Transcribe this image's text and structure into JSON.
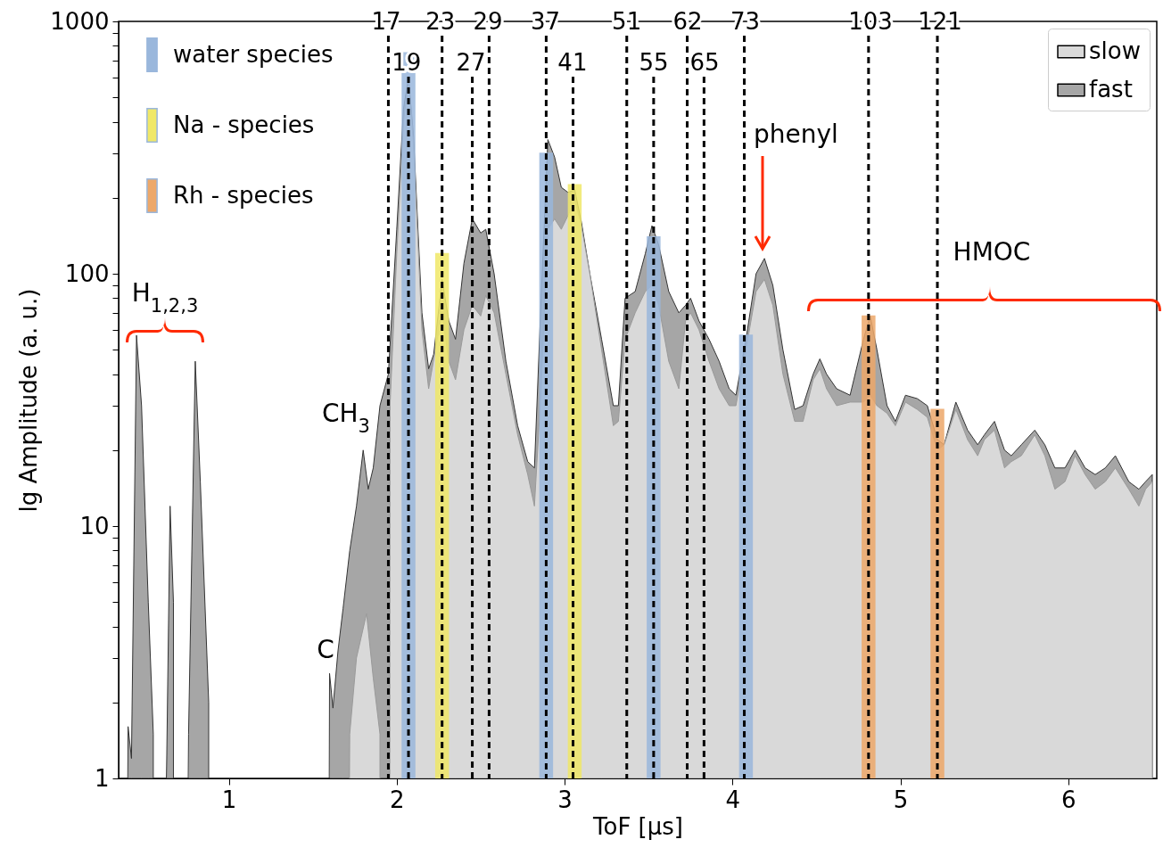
{
  "chart_data": {
    "type": "area",
    "xlabel": "ToF [μs]",
    "ylabel": "lg Amplitude  (a. u.)",
    "xlim": [
      0.37,
      6.5
    ],
    "xticks": [
      1,
      2,
      3,
      4,
      5,
      6
    ],
    "ylim": [
      1,
      1000
    ],
    "log": "y",
    "legend": "top right",
    "yticks": [
      1,
      {
        "value": 2,
        "label": null
      },
      {
        "value": 3,
        "label": null
      },
      {
        "value": 4,
        "label": null
      },
      {
        "value": 5,
        "label": null
      },
      {
        "value": 6,
        "label": null
      },
      {
        "value": 7,
        "label": null
      },
      {
        "value": 8,
        "label": null
      },
      {
        "value": 9,
        "label": null
      },
      10,
      {
        "value": 20,
        "label": null
      },
      {
        "value": 30,
        "label": null
      },
      {
        "value": 40,
        "label": null
      },
      {
        "value": 50,
        "label": null
      },
      {
        "value": 60,
        "label": null
      },
      {
        "value": 70,
        "label": null
      },
      {
        "value": 80,
        "label": null
      },
      {
        "value": 90,
        "label": null
      },
      100,
      {
        "value": 200,
        "label": null
      },
      {
        "value": 300,
        "label": null
      },
      {
        "value": 400,
        "label": null
      },
      {
        "value": 500,
        "label": null
      },
      {
        "value": 600,
        "label": null
      },
      {
        "value": 700,
        "label": null
      },
      {
        "value": 800,
        "label": null
      },
      {
        "value": 900,
        "label": null
      },
      1000
    ],
    "series": [
      {
        "name": "slow",
        "color": "#d9d9d9",
        "x": [
          1.72,
          1.76,
          1.82,
          1.86,
          1.9,
          1.92,
          1.94,
          1.96,
          2.0,
          2.04,
          2.07,
          2.1,
          2.15,
          2.19,
          2.23,
          2.27,
          2.31,
          2.35,
          2.4,
          2.45,
          2.5,
          2.53,
          2.58,
          2.65,
          2.72,
          2.78,
          2.82,
          2.86,
          2.9,
          2.94,
          2.98,
          3.02,
          3.06,
          3.1,
          3.15,
          3.22,
          3.29,
          3.32,
          3.36,
          3.42,
          3.48,
          3.52,
          3.56,
          3.62,
          3.68,
          3.72,
          3.75,
          3.8,
          3.86,
          3.92,
          3.98,
          4.02,
          4.08,
          4.14,
          4.19,
          4.24,
          4.3,
          4.37,
          4.42,
          4.48,
          4.52,
          4.56,
          4.62,
          4.7,
          4.78,
          4.82,
          4.86,
          4.92,
          4.97,
          5.03,
          5.1,
          5.16,
          5.22,
          5.26,
          5.33,
          5.4,
          5.46,
          5.5,
          5.56,
          5.62,
          5.66,
          5.72,
          5.8,
          5.86,
          5.92,
          5.98,
          6.04,
          6.1,
          6.16,
          6.22,
          6.28,
          6.36,
          6.42,
          6.46,
          6.5
        ],
        "values": [
          1.5,
          3,
          4.5,
          2.5,
          1.5,
          null,
          null,
          30,
          120,
          400,
          580,
          330,
          60,
          35,
          50,
          70,
          45,
          38,
          60,
          75,
          68,
          82,
          70,
          40,
          23,
          16,
          12,
          35,
          150,
          165,
          150,
          170,
          195,
          155,
          100,
          50,
          25,
          26,
          55,
          70,
          85,
          90,
          75,
          45,
          35,
          65,
          70,
          60,
          45,
          35,
          30,
          30,
          50,
          85,
          95,
          75,
          40,
          26,
          26,
          38,
          42,
          35,
          30,
          31,
          31,
          33,
          30,
          28,
          25,
          31,
          29,
          27,
          20,
          21,
          29,
          22,
          19,
          22,
          24,
          17,
          18,
          19,
          23,
          19,
          14,
          15,
          19,
          16,
          14,
          15,
          17,
          14,
          12,
          14,
          15
        ]
      },
      {
        "name": "fast",
        "color": "#a6a6a6",
        "x": [
          0.4,
          0.42,
          0.45,
          0.48,
          0.52,
          0.55,
          0.57,
          0.61,
          0.63,
          0.65,
          0.67,
          0.69,
          0.74,
          0.76,
          0.8,
          0.83,
          0.88,
          0.9,
          1.0,
          1.5,
          1.58,
          1.6,
          1.62,
          1.65,
          1.68,
          1.72,
          1.76,
          1.8,
          1.83,
          1.86,
          1.9,
          1.95,
          2.0,
          2.04,
          2.07,
          2.1,
          2.15,
          2.19,
          2.22,
          2.27,
          2.31,
          2.35,
          2.4,
          2.45,
          2.5,
          2.53,
          2.58,
          2.65,
          2.72,
          2.78,
          2.82,
          2.86,
          2.9,
          2.94,
          2.98,
          3.02,
          3.06,
          3.1,
          3.15,
          3.22,
          3.29,
          3.32,
          3.36,
          3.42,
          3.48,
          3.52,
          3.56,
          3.62,
          3.68,
          3.72,
          3.75,
          3.8,
          3.86,
          3.92,
          3.98,
          4.02,
          4.08,
          4.14,
          4.19,
          4.24,
          4.3,
          4.37,
          4.42,
          4.48,
          4.52,
          4.56,
          4.62,
          4.7,
          4.78,
          4.82,
          4.86,
          4.92,
          4.97,
          5.03,
          5.1,
          5.16,
          5.22,
          5.26,
          5.33,
          5.4,
          5.46,
          5.5,
          5.56,
          5.62,
          5.66,
          5.72,
          5.8,
          5.86,
          5.92,
          5.98,
          6.04,
          6.1,
          6.16,
          6.22,
          6.28,
          6.36,
          6.42,
          6.46,
          6.5
        ],
        "values": [
          1.6,
          1.2,
          57,
          30,
          5,
          1.5,
          null,
          null,
          1.2,
          12,
          5,
          null,
          null,
          1.5,
          45,
          15,
          2,
          null,
          null,
          null,
          null,
          2.6,
          1.9,
          3.2,
          4.7,
          8,
          12,
          20,
          14,
          17,
          30,
          40,
          150,
          450,
          600,
          350,
          70,
          42,
          48,
          95,
          65,
          55,
          110,
          165,
          145,
          150,
          100,
          45,
          25,
          18,
          17,
          80,
          340,
          290,
          220,
          210,
          215,
          160,
          100,
          55,
          30,
          30,
          80,
          85,
          120,
          155,
          130,
          85,
          70,
          75,
          80,
          65,
          55,
          45,
          35,
          33,
          55,
          100,
          115,
          90,
          50,
          29,
          30,
          40,
          46,
          40,
          35,
          33,
          55,
          68,
          50,
          30,
          26,
          33,
          32,
          30,
          22,
          21,
          31,
          24,
          21,
          23,
          26,
          20,
          19,
          21,
          24,
          21,
          17,
          17,
          20,
          17,
          16,
          17,
          19,
          15,
          14,
          15,
          16
        ]
      },
      {
        "name": "water species",
        "type": "bar",
        "color": "#9ab7dc",
        "x": [
          2.07,
          2.89,
          3.53,
          4.08
        ],
        "values": [
          750,
          300,
          140,
          57
        ]
      },
      {
        "name": "Na - species",
        "type": "bar",
        "color": "#f0e868",
        "x": [
          2.27,
          3.06
        ],
        "values": [
          120,
          225
        ]
      },
      {
        "name": "Rh - species",
        "type": "bar",
        "color": "#eda86a",
        "x": [
          4.81,
          5.22
        ],
        "values": [
          68,
          29
        ]
      }
    ],
    "ref_lines": [
      {
        "axis": "x",
        "value": 1.95,
        "line_style": "dashed",
        "color": "#000000"
      },
      {
        "axis": "x",
        "value": 2.07,
        "line_style": "dashed",
        "color": "#000000"
      },
      {
        "axis": "x",
        "value": 2.27,
        "line_style": "dashed",
        "color": "#000000"
      },
      {
        "axis": "x",
        "value": 2.45,
        "line_style": "dashed",
        "color": "#000000"
      },
      {
        "axis": "x",
        "value": 2.55,
        "line_style": "dashed",
        "color": "#000000"
      },
      {
        "axis": "x",
        "value": 2.89,
        "line_style": "dashed",
        "color": "#000000"
      },
      {
        "axis": "x",
        "value": 3.05,
        "line_style": "dashed",
        "color": "#000000"
      },
      {
        "axis": "x",
        "value": 3.37,
        "line_style": "dashed",
        "color": "#000000"
      },
      {
        "axis": "x",
        "value": 3.53,
        "line_style": "dashed",
        "color": "#000000"
      },
      {
        "axis": "x",
        "value": 3.73,
        "line_style": "dashed",
        "color": "#000000"
      },
      {
        "axis": "x",
        "value": 3.83,
        "line_style": "dashed",
        "color": "#000000"
      },
      {
        "axis": "x",
        "value": 4.07,
        "line_style": "dashed",
        "color": "#000000"
      },
      {
        "axis": "x",
        "value": 4.81,
        "line_style": "dashed",
        "color": "#000000"
      },
      {
        "axis": "x",
        "value": 5.22,
        "line_style": "dashed",
        "color": "#000000"
      }
    ],
    "annotations": [
      "H$_{1,2,3}$",
      "CH$_{3}$",
      "C",
      "phenyl",
      "HMOC",
      "17",
      "19",
      "23",
      "27",
      "29",
      "37",
      "41",
      "51",
      "55",
      "62",
      "65",
      "73",
      "103",
      "121"
    ]
  }
}
